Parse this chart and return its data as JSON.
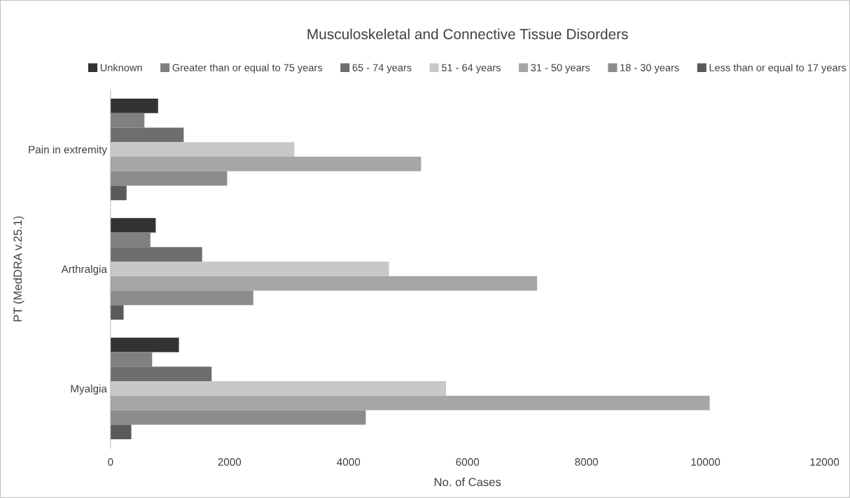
{
  "chart_data": {
    "type": "bar",
    "orientation": "horizontal",
    "title": "Musculoskeletal and Connective Tissue Disorders",
    "xlabel": "No. of Cases",
    "ylabel": "PT (MedDRA v.25.1)",
    "categories": [
      "Pain in extremity",
      "Arthralgia",
      "Myalgia"
    ],
    "series": [
      {
        "name": "Unknown",
        "color": "#333333",
        "values": [
          800,
          760,
          1150
        ]
      },
      {
        "name": "Greater than or equal to 75 years",
        "color": "#808080",
        "values": [
          570,
          670,
          700
        ]
      },
      {
        "name": "65 - 74 years",
        "color": "#6e6e6e",
        "values": [
          1230,
          1540,
          1700
        ]
      },
      {
        "name": "51 - 64 years",
        "color": "#c8c8c8",
        "values": [
          3090,
          4680,
          5640
        ]
      },
      {
        "name": "31 - 50 years",
        "color": "#a6a6a6",
        "values": [
          5220,
          7170,
          10070
        ]
      },
      {
        "name": "18 - 30 years",
        "color": "#8c8c8c",
        "values": [
          1960,
          2400,
          4290
        ]
      },
      {
        "name": "Less than or equal to 17 years",
        "color": "#5a5a5a",
        "values": [
          270,
          220,
          350
        ]
      }
    ],
    "xlim": [
      0,
      12000
    ],
    "xticks": [
      0,
      2000,
      4000,
      6000,
      8000,
      10000,
      12000
    ],
    "grid": false,
    "legend": "top"
  }
}
